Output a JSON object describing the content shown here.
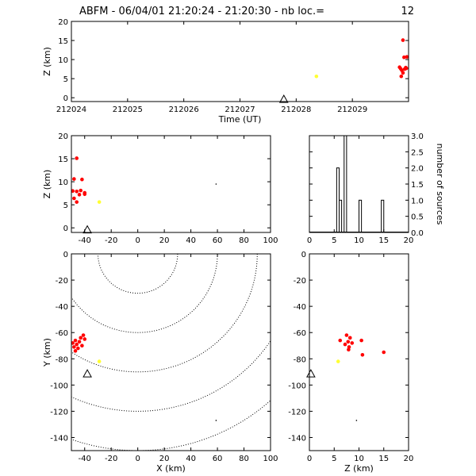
{
  "title": "ABFM - 06/04/01 21:20:24 - 21:20:30 - nb loc.=",
  "nb_loc": "12",
  "colors": {
    "early": "#ffff33",
    "late": "#ff0000",
    "station": "#000000",
    "axis": "#000000"
  },
  "chart_data": [
    {
      "id": "time-height",
      "type": "scatter",
      "xlabel": "Time (UT)",
      "ylabel": "Z (km)",
      "xlim": [
        212024,
        212030
      ],
      "ylim": [
        -1,
        20
      ],
      "xticks": [
        212024,
        212025,
        212026,
        212027,
        212028,
        212029
      ],
      "xtick_labels": [
        "212024",
        "212025",
        "212026",
        "212027",
        "212028",
        "212029"
      ],
      "yticks": [
        0,
        5,
        10,
        15,
        20
      ],
      "ytick_labels": [
        "0",
        "5",
        "10",
        "15",
        "20"
      ],
      "points": [
        {
          "x": 212028.36,
          "y": 5.6,
          "c": "early"
        },
        {
          "x": 212029.9,
          "y": 15.1,
          "c": "late"
        },
        {
          "x": 212029.92,
          "y": 10.6,
          "c": "late"
        },
        {
          "x": 212029.97,
          "y": 10.7,
          "c": "late"
        },
        {
          "x": 212029.84,
          "y": 8.0,
          "c": "late"
        },
        {
          "x": 212029.86,
          "y": 7.6,
          "c": "late"
        },
        {
          "x": 212029.93,
          "y": 7.5,
          "c": "late"
        },
        {
          "x": 212029.96,
          "y": 7.7,
          "c": "late"
        },
        {
          "x": 212029.88,
          "y": 7.2,
          "c": "late"
        },
        {
          "x": 212029.9,
          "y": 6.5,
          "c": "late"
        },
        {
          "x": 212029.87,
          "y": 5.6,
          "c": "late"
        },
        {
          "x": 212029.95,
          "y": 7.9,
          "c": "late"
        }
      ],
      "station": {
        "x": 212027.78,
        "y": -0.6
      }
    },
    {
      "id": "x-z",
      "type": "scatter",
      "xlabel": "",
      "ylabel": "Z (km)",
      "xlim": [
        -50,
        100
      ],
      "ylim": [
        -1,
        20
      ],
      "xticks": [
        -40,
        -20,
        0,
        20,
        40,
        60,
        80,
        100
      ],
      "xtick_labels": [
        "-40",
        "-20",
        "0",
        "20",
        "40",
        "60",
        "80",
        "100"
      ],
      "yticks": [
        0,
        5,
        10,
        15,
        20
      ],
      "ytick_labels": [
        "0",
        "5",
        "10",
        "15",
        "20"
      ],
      "points": [
        {
          "x": -29,
          "y": 5.6,
          "c": "early"
        },
        {
          "x": -46,
          "y": 15.1,
          "c": "late"
        },
        {
          "x": -48,
          "y": 10.6,
          "c": "late"
        },
        {
          "x": -42,
          "y": 10.5,
          "c": "late"
        },
        {
          "x": -49,
          "y": 8.0,
          "c": "late"
        },
        {
          "x": -46,
          "y": 7.9,
          "c": "late"
        },
        {
          "x": -43,
          "y": 8.1,
          "c": "late"
        },
        {
          "x": -40,
          "y": 7.6,
          "c": "late"
        },
        {
          "x": -44,
          "y": 7.2,
          "c": "late"
        },
        {
          "x": -48,
          "y": 6.4,
          "c": "late"
        },
        {
          "x": -46,
          "y": 5.6,
          "c": "late"
        },
        {
          "x": -40,
          "y": 7.3,
          "c": "late"
        }
      ],
      "station": {
        "x": -38,
        "y": -0.6
      },
      "marker": {
        "x": 59,
        "y": 9.5
      }
    },
    {
      "id": "z-histogram",
      "type": "bar",
      "xlabel": "",
      "ylabel": "number of sources",
      "xlim": [
        0,
        20
      ],
      "ylim": [
        0,
        3
      ],
      "xticks": [
        0,
        5,
        10,
        15,
        20
      ],
      "xtick_labels": [
        "0",
        "5",
        "10",
        "15",
        "20"
      ],
      "yticks": [
        0,
        0.5,
        1,
        1.5,
        2,
        2.5,
        3
      ],
      "ytick_labels": [
        "0.0",
        "0.5",
        "1.0",
        "1.5",
        "2.0",
        "2.5",
        "3.0"
      ],
      "bin_edges": [
        0,
        0.5,
        1,
        1.5,
        2,
        2.5,
        3,
        3.5,
        4,
        4.5,
        5,
        5.5,
        6,
        6.5,
        7,
        7.5,
        8,
        8.5,
        9,
        9.5,
        10,
        10.5,
        11,
        11.5,
        12,
        12.5,
        13,
        13.5,
        14,
        14.5,
        15,
        15.5,
        16,
        16.5,
        17,
        17.5,
        18,
        18.5,
        19,
        19.5,
        20
      ],
      "values": [
        0,
        0,
        0,
        0,
        0,
        0,
        0,
        0,
        0,
        0,
        0,
        2,
        1,
        0,
        3,
        0,
        0,
        0,
        0,
        0,
        1,
        0,
        0,
        0,
        0,
        0,
        0,
        0,
        0,
        1,
        0,
        0,
        0,
        0,
        0,
        0,
        0,
        0,
        0,
        0
      ]
    },
    {
      "id": "x-y",
      "type": "scatter",
      "xlabel": "X (km)",
      "ylabel": "Y (km)",
      "xlim": [
        -50,
        100
      ],
      "ylim": [
        -150,
        0
      ],
      "xticks": [
        -40,
        -20,
        0,
        20,
        40,
        60,
        80,
        100
      ],
      "xtick_labels": [
        "-40",
        "-20",
        "0",
        "20",
        "40",
        "60",
        "80",
        "100"
      ],
      "yticks": [
        -140,
        -120,
        -100,
        -80,
        -60,
        -40,
        -20,
        0
      ],
      "ytick_labels": [
        "-140",
        "-120",
        "-100",
        "-80",
        "-60",
        "-40",
        "-20",
        "0"
      ],
      "range_rings": {
        "center": [
          0,
          0
        ],
        "radii": [
          30,
          60,
          90,
          120,
          150
        ]
      },
      "points": [
        {
          "x": -29,
          "y": -82,
          "c": "early"
        },
        {
          "x": -41,
          "y": -62,
          "c": "late"
        },
        {
          "x": -43,
          "y": -64,
          "c": "late"
        },
        {
          "x": -40,
          "y": -65,
          "c": "late"
        },
        {
          "x": -47,
          "y": -66,
          "c": "late"
        },
        {
          "x": -44,
          "y": -67,
          "c": "late"
        },
        {
          "x": -49,
          "y": -68,
          "c": "late"
        },
        {
          "x": -46,
          "y": -69,
          "c": "late"
        },
        {
          "x": -42,
          "y": -70,
          "c": "late"
        },
        {
          "x": -48,
          "y": -71,
          "c": "late"
        },
        {
          "x": -45,
          "y": -72,
          "c": "late"
        },
        {
          "x": -47,
          "y": -74,
          "c": "late"
        }
      ],
      "station": {
        "x": -38,
        "y": -92
      },
      "marker": {
        "x": 59,
        "y": -127
      }
    },
    {
      "id": "z-y",
      "type": "scatter",
      "xlabel": "Z (km)",
      "ylabel": "",
      "xlim": [
        0,
        20
      ],
      "ylim": [
        -150,
        0
      ],
      "xticks": [
        0,
        5,
        10,
        15,
        20
      ],
      "xtick_labels": [
        "0",
        "5",
        "10",
        "15",
        "20"
      ],
      "yticks": [
        -140,
        -120,
        -100,
        -80,
        -60,
        -40,
        -20,
        0
      ],
      "ytick_labels": [
        "-140",
        "-120",
        "-100",
        "-80",
        "-60",
        "-40",
        "-20",
        "0"
      ],
      "points": [
        {
          "x": 5.8,
          "y": -82,
          "c": "early"
        },
        {
          "x": 7.5,
          "y": -62,
          "c": "late"
        },
        {
          "x": 8.2,
          "y": -64,
          "c": "late"
        },
        {
          "x": 6.2,
          "y": -66,
          "c": "late"
        },
        {
          "x": 7.8,
          "y": -67,
          "c": "late"
        },
        {
          "x": 8.6,
          "y": -68,
          "c": "late"
        },
        {
          "x": 7.2,
          "y": -69,
          "c": "late"
        },
        {
          "x": 8.0,
          "y": -71,
          "c": "late"
        },
        {
          "x": 10.5,
          "y": -66,
          "c": "late"
        },
        {
          "x": 10.7,
          "y": -77,
          "c": "late"
        },
        {
          "x": 15.0,
          "y": -75,
          "c": "late"
        },
        {
          "x": 7.9,
          "y": -73,
          "c": "late"
        }
      ],
      "station": {
        "x": 0.3,
        "y": -92
      },
      "marker": {
        "x": 9.5,
        "y": -127
      }
    }
  ]
}
